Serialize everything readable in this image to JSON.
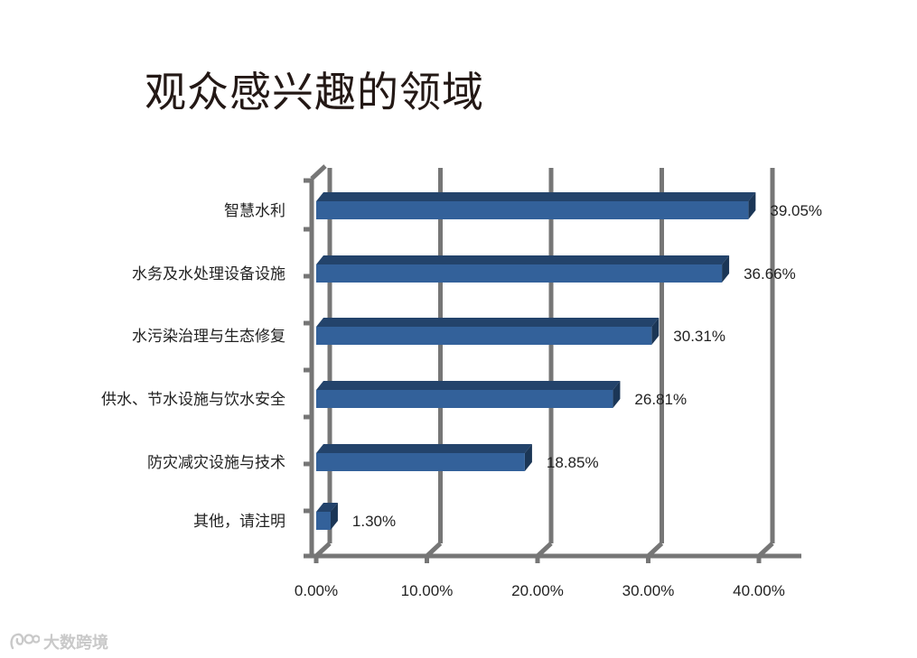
{
  "title": "观众感兴趣的领域",
  "watermark": {
    "text": "大数跨境",
    "logo_icon": "cat-logo-icon"
  },
  "colors": {
    "bar_front": "#33619a",
    "bar_top": "#23436b",
    "bar_side": "#1b3656",
    "grid": "#767676"
  },
  "chart_data": {
    "type": "bar",
    "orientation": "horizontal",
    "title": "观众感兴趣的领域",
    "categories": [
      "智慧水利",
      "水务及水处理设备设施",
      "水污染治理与生态修复",
      "供水、节水设施与饮水安全",
      "防灾减灾设施与技术",
      "其他，请注明"
    ],
    "values": [
      39.05,
      36.66,
      30.31,
      26.81,
      18.85,
      1.3
    ],
    "value_labels": [
      "39.05%",
      "36.66%",
      "30.31%",
      "26.81%",
      "18.85%",
      "1.30%"
    ],
    "xlim": [
      0,
      40
    ],
    "xticks": [
      0,
      10,
      20,
      30,
      40
    ],
    "xtick_labels": [
      "0.00%",
      "10.00%",
      "20.00%",
      "30.00%",
      "40.00%"
    ],
    "grid": true,
    "legend": "none"
  }
}
